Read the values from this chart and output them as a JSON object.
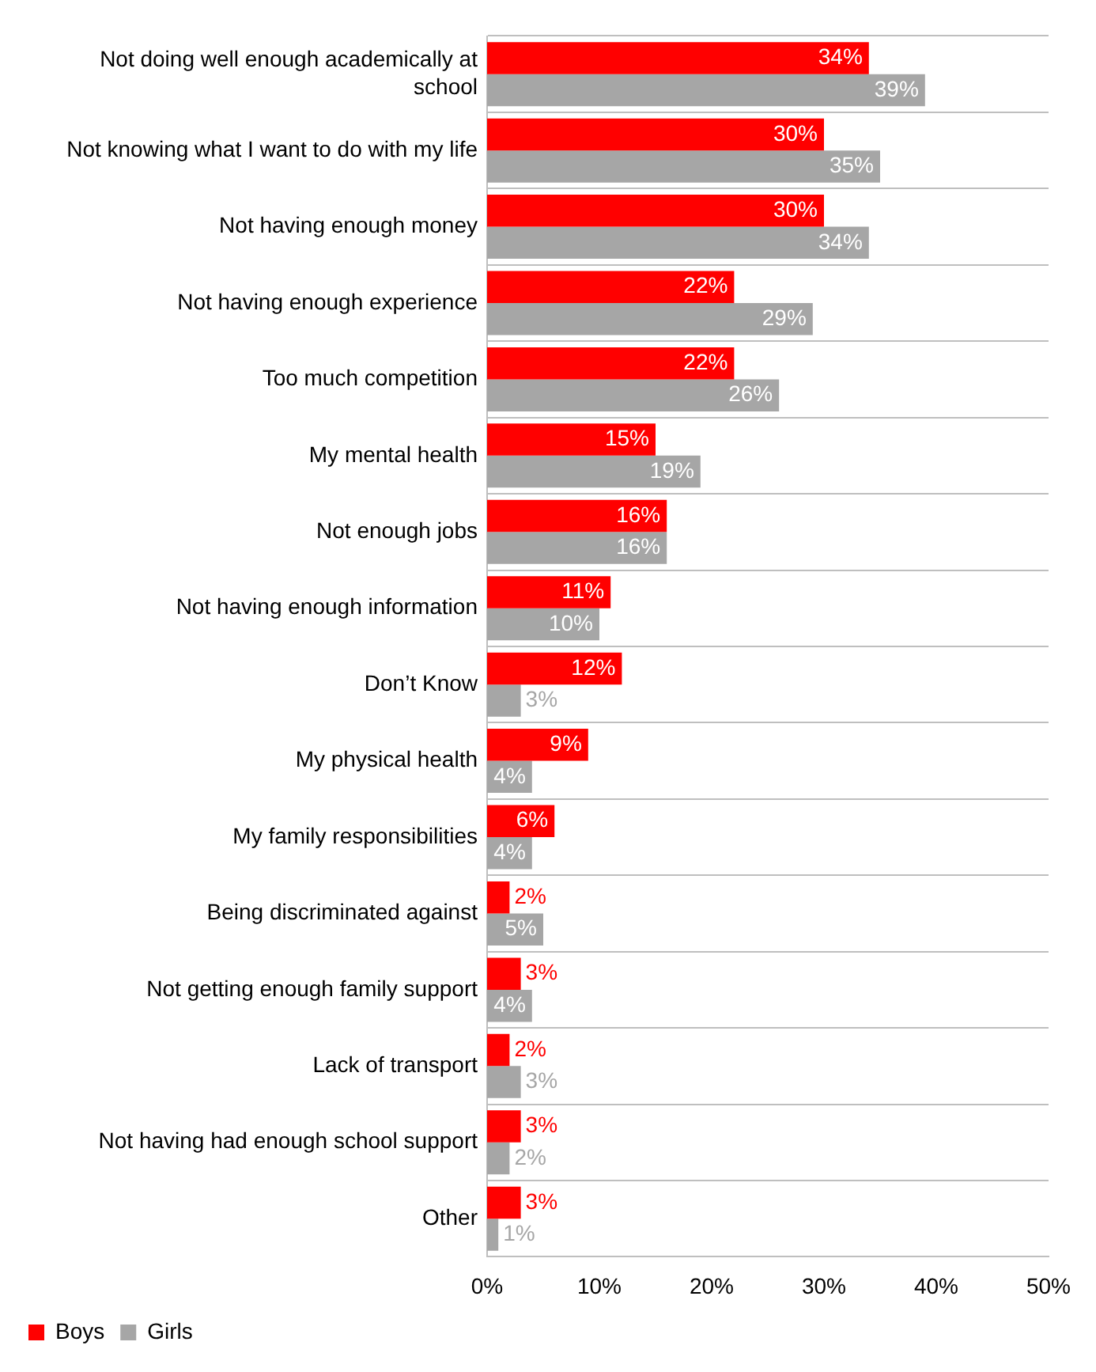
{
  "chart_data": {
    "type": "bar",
    "orientation": "horizontal",
    "categories": [
      "Not doing well enough academically at school",
      "Not knowing what I want to do with my life",
      "Not having enough money",
      "Not having enough experience",
      "Too much competition",
      "My mental health",
      "Not enough jobs",
      "Not having enough information",
      "Don’t Know",
      "My physical health",
      "My family responsibilities",
      "Being discriminated against",
      "Not getting enough family support",
      "Lack of transport",
      "Not having had enough school support",
      "Other"
    ],
    "series": [
      {
        "name": "Boys",
        "color": "#ff0000",
        "values": [
          34,
          30,
          30,
          22,
          22,
          15,
          16,
          11,
          12,
          9,
          6,
          2,
          3,
          2,
          3,
          3
        ],
        "value_labels": [
          "34%",
          "30%",
          "30%",
          "22%",
          "22%",
          "15%",
          "16%",
          "11%",
          "12%",
          "9%",
          "6%",
          "2%",
          "3%",
          "2%",
          "3%",
          "3%"
        ]
      },
      {
        "name": "Girls",
        "color": "#a6a6a6",
        "values": [
          39,
          35,
          34,
          29,
          26,
          19,
          16,
          10,
          3,
          4,
          4,
          5,
          4,
          3,
          2,
          1
        ],
        "value_labels": [
          "39%",
          "35%",
          "34%",
          "29%",
          "26%",
          "19%",
          "16%",
          "10%",
          "3%",
          "4%",
          "4%",
          "5%",
          "4%",
          "3%",
          "2%",
          "1%"
        ]
      }
    ],
    "xlim": [
      0,
      50
    ],
    "xticks": [
      {
        "value": 0,
        "label": "0%"
      },
      {
        "value": 10,
        "label": "10%"
      },
      {
        "value": 20,
        "label": "20%"
      },
      {
        "value": 30,
        "label": "30%"
      },
      {
        "value": 40,
        "label": "40%"
      },
      {
        "value": 50,
        "label": "50%"
      }
    ],
    "grid": "y",
    "legend": "bottom left"
  }
}
